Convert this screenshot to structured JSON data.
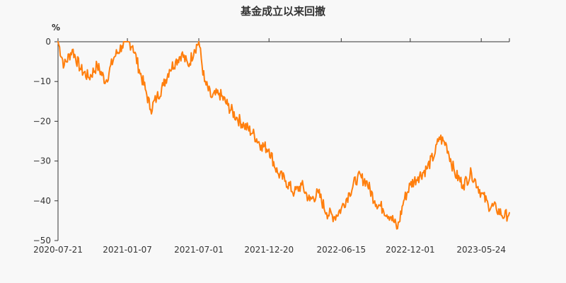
{
  "chart_data": {
    "type": "line",
    "title": "基金成立以来回撤",
    "ylabel": "%",
    "xlabel": "",
    "ylim": [
      -50,
      0
    ],
    "y_ticks": [
      0,
      -10,
      -20,
      -30,
      -40,
      -50
    ],
    "x_ticks": [
      "2020-07-21",
      "2021-01-07",
      "2021-07-01",
      "2021-12-20",
      "2022-06-15",
      "2022-12-01",
      "2023-05-24"
    ],
    "grid": false,
    "legend": "none",
    "colors": {
      "line": "#ff7f0e",
      "axis": "#333333",
      "background": "#f8f8f8"
    },
    "series": [
      {
        "x": [
          "2020-07-21",
          "2020-08-05",
          "2020-08-25",
          "2020-09-15",
          "2020-10-05",
          "2020-10-25",
          "2020-11-15",
          "2020-12-05",
          "2020-12-25",
          "2021-01-07",
          "2021-01-20",
          "2021-02-05",
          "2021-02-20",
          "2021-03-05",
          "2021-03-20",
          "2021-04-05",
          "2021-04-20",
          "2021-05-05",
          "2021-05-20",
          "2021-06-05",
          "2021-06-20",
          "2021-07-01",
          "2021-07-15",
          "2021-08-01",
          "2021-08-20",
          "2021-09-10",
          "2021-10-01",
          "2021-10-20",
          "2021-11-10",
          "2021-12-01",
          "2021-12-20",
          "2022-01-10",
          "2022-01-30",
          "2022-02-20",
          "2022-03-10",
          "2022-03-30",
          "2022-04-20",
          "2022-05-10",
          "2022-05-30",
          "2022-06-15",
          "2022-07-05",
          "2022-07-25",
          "2022-08-15",
          "2022-09-05",
          "2022-09-25",
          "2022-10-15",
          "2022-10-31",
          "2022-11-15",
          "2022-12-01",
          "2022-12-20",
          "2023-01-10",
          "2023-01-31",
          "2023-02-10",
          "2023-02-28",
          "2023-03-20",
          "2023-04-10",
          "2023-04-30",
          "2023-05-24",
          "2023-06-10",
          "2023-06-30",
          "2023-07-20",
          "2023-08-01"
        ],
        "values": [
          0,
          -6,
          -2,
          -7,
          -9,
          -6,
          -10,
          -4,
          -1,
          0,
          -1,
          -7,
          -12,
          -17,
          -14,
          -11,
          -7,
          -5,
          -3,
          -6,
          -2,
          0,
          -10,
          -14,
          -13,
          -16,
          -19,
          -21,
          -23,
          -26,
          -27,
          -33,
          -35,
          -38,
          -36,
          -40,
          -38,
          -43,
          -44,
          -42,
          -38,
          -34,
          -35,
          -40,
          -42,
          -44,
          -47,
          -40,
          -36,
          -34,
          -32,
          -28,
          -24,
          -26,
          -33,
          -36,
          -33,
          -38,
          -41,
          -42,
          -44,
          -43
        ]
      }
    ]
  }
}
